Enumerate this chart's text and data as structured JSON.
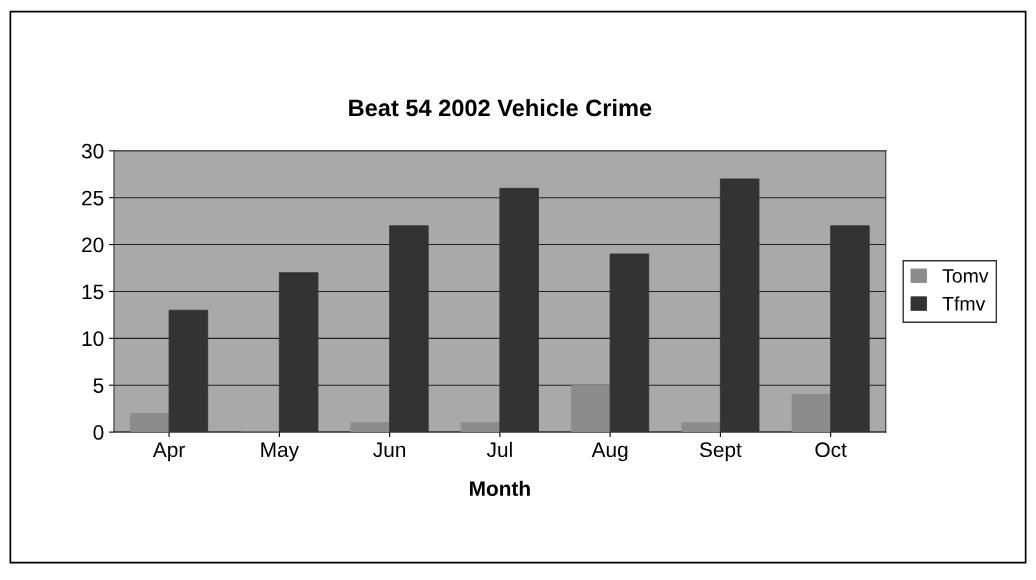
{
  "chart_data": {
    "type": "bar",
    "title": "Beat 54 2002 Vehicle Crime",
    "xlabel": "Month",
    "categories": [
      "Apr",
      "May",
      "Jun",
      "Jul",
      "Aug",
      "Sept",
      "Oct"
    ],
    "series": [
      {
        "name": "Tomv",
        "color": "#8c8c8c",
        "values": [
          2,
          0,
          1,
          1,
          5,
          1,
          4
        ]
      },
      {
        "name": "Tfmv",
        "color": "#333333",
        "values": [
          13,
          17,
          22,
          26,
          19,
          27,
          22
        ]
      }
    ],
    "ylim": [
      0,
      30
    ],
    "yticks": [
      0,
      5,
      10,
      15,
      20,
      25,
      30
    ],
    "grid": "y",
    "legend": "right"
  }
}
